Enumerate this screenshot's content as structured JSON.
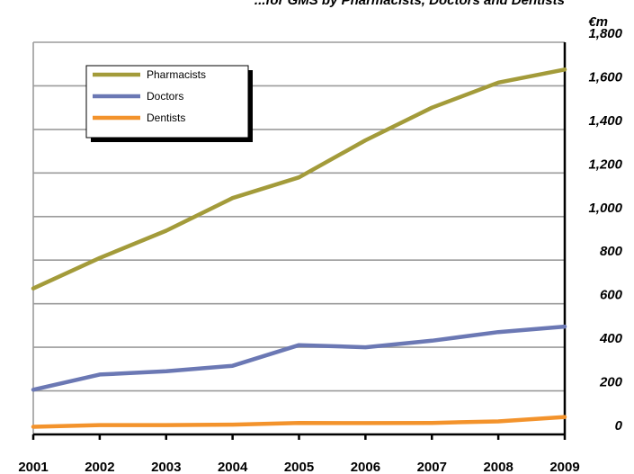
{
  "chart_data": {
    "type": "line",
    "title": "...for GMS by Pharmacists, Doctors and Dentists",
    "unit_label": "€m",
    "x": [
      "2001",
      "2002",
      "2003",
      "2004",
      "2005",
      "2006",
      "2007",
      "2008",
      "2009"
    ],
    "ylim": [
      0,
      1800
    ],
    "y_ticks": [
      "0",
      "200",
      "400",
      "600",
      "800",
      "1,000",
      "1,200",
      "1,400",
      "1,600",
      "1,800"
    ],
    "grid": true,
    "legend_position": "top-left",
    "series": [
      {
        "name": "Pharmacists",
        "color": "#a39b3a",
        "values": [
          670,
          810,
          935,
          1085,
          1180,
          1350,
          1500,
          1615,
          1675
        ]
      },
      {
        "name": "Doctors",
        "color": "#6b78b4",
        "values": [
          205,
          275,
          290,
          315,
          410,
          400,
          430,
          470,
          495
        ]
      },
      {
        "name": "Dentists",
        "color": "#f3932c",
        "values": [
          35,
          43,
          43,
          45,
          53,
          52,
          53,
          60,
          80
        ]
      }
    ]
  }
}
